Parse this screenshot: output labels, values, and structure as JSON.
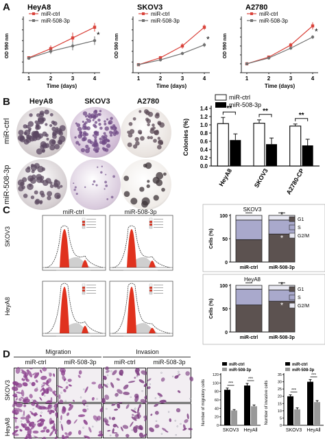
{
  "panels": {
    "A": "A",
    "B": "B",
    "C": "C",
    "D": "D"
  },
  "colors": {
    "ctrl": "#d9423a",
    "mir": "#707070",
    "bar_ctrl": "#ffffff",
    "bar_mir": "#000000",
    "g1": "#5c5250",
    "s": "#a9a9cc",
    "g2m": "#e8e8f2",
    "red_peak": "#e0321e"
  },
  "panelA": {
    "charts": [
      {
        "title": "HeyA8",
        "ylabel": "OD 590 nm",
        "xlabel": "Time (days)",
        "xticks": [
          "1",
          "2",
          "3",
          "4"
        ],
        "legend": [
          "miR-ctrl",
          "miR-508-3p"
        ],
        "star": "*"
      },
      {
        "title": "SKOV3",
        "ylabel": "OD 590 nm",
        "xlabel": "Time (days)",
        "xticks": [
          "1",
          "2",
          "3",
          "4"
        ],
        "legend": [
          "miR-ctrl",
          "miR-508-3p"
        ],
        "star": "*"
      },
      {
        "title": "A2780",
        "ylabel": "OD 590 nm",
        "xlabel": "Time (days)",
        "xticks": [
          "1",
          "2",
          "3",
          "4"
        ],
        "legend": [
          "miR-ctrl",
          "miR-508-3p"
        ],
        "star": "*"
      }
    ]
  },
  "panelB": {
    "col_labels": [
      "HeyA8",
      "SKOV3",
      "A2780"
    ],
    "row_labels": [
      "miR-ctrl",
      "miR-508-3p"
    ],
    "bar_legend": [
      "miR-ctrl",
      "miR-508-3p"
    ],
    "ylabel": "Colonies (%)",
    "yticks": [
      "0.0",
      "0.2",
      "0.4",
      "0.6",
      "0.8",
      "1.0",
      "1.2",
      "1.4"
    ],
    "categories": [
      "HeyA8",
      "SKOV3",
      "A2780-CP"
    ],
    "sig": [
      "**",
      "**",
      "**"
    ]
  },
  "panelC": {
    "col_labels": [
      "miR-ctrl",
      "miR-508-3p"
    ],
    "row_labels": [
      "SKOV3",
      "HeyA8"
    ],
    "charts": [
      {
        "title": "SKOV3",
        "ylabel": "Cells (%)",
        "yticks": [
          "0",
          "50",
          "100"
        ],
        "categories": [
          "miR-ctrl",
          "miR-508-3p"
        ],
        "legend": [
          "G1",
          "S",
          "G2/M"
        ],
        "stars": [
          "*",
          "*"
        ]
      },
      {
        "title": "HeyA8",
        "ylabel": "Cells (%)",
        "yticks": [
          "0",
          "50",
          "100"
        ],
        "categories": [
          "miR-ctrl",
          "miR-508-3p"
        ],
        "legend": [
          "G1",
          "S",
          "G2/M"
        ],
        "stars": [
          "*",
          "*"
        ]
      }
    ]
  },
  "panelD": {
    "group_labels": [
      "Migration",
      "Invasion"
    ],
    "col_labels": [
      "miR-ctrl",
      "miR-508-3p",
      "miR-ctrl",
      "miR-508-3p"
    ],
    "row_labels": [
      "SKOV3",
      "HeyA8"
    ],
    "charts": [
      {
        "ylabel": "Number of migratory cells",
        "yticks": [
          "0",
          "20",
          "40",
          "60",
          "80",
          "100",
          "120"
        ],
        "categories": [
          "SKOV3",
          "HeyAll"
        ],
        "legend": [
          "miR-ctrl",
          "miR-508-3p"
        ],
        "sig": [
          "***",
          "***"
        ]
      },
      {
        "ylabel": "Number of invasive cells",
        "yticks": [
          "0",
          "5",
          "10",
          "15",
          "20",
          "25",
          "30",
          "35"
        ],
        "categories": [
          "SKOV3",
          "HeyAll"
        ],
        "legend": [
          "miR-ctrl",
          "miR-508-3p"
        ],
        "sig": [
          "***",
          "***"
        ]
      }
    ]
  },
  "chart_data": [
    {
      "type": "line",
      "title": "HeyA8",
      "xlabel": "Time (days)",
      "ylabel": "OD 590 nm",
      "x": [
        1,
        2,
        3,
        4
      ],
      "series": [
        {
          "name": "miR-ctrl",
          "values": [
            0.28,
            0.45,
            0.65,
            0.85
          ]
        },
        {
          "name": "miR-508-3p",
          "values": [
            0.27,
            0.4,
            0.5,
            0.6
          ]
        }
      ]
    },
    {
      "type": "line",
      "title": "SKOV3",
      "xlabel": "Time (days)",
      "ylabel": "OD 590 nm",
      "x": [
        1,
        2,
        3,
        4
      ],
      "series": [
        {
          "name": "miR-ctrl",
          "values": [
            0.15,
            0.28,
            0.5,
            0.85
          ]
        },
        {
          "name": "miR-508-3p",
          "values": [
            0.15,
            0.24,
            0.36,
            0.52
          ]
        }
      ]
    },
    {
      "type": "line",
      "title": "A2780",
      "xlabel": "Time (days)",
      "ylabel": "OD 590 nm",
      "x": [
        1,
        2,
        3,
        4
      ],
      "series": [
        {
          "name": "miR-ctrl",
          "values": [
            0.2,
            0.35,
            0.62,
            1.05
          ]
        },
        {
          "name": "miR-508-3p",
          "values": [
            0.2,
            0.33,
            0.55,
            0.8
          ]
        }
      ]
    },
    {
      "type": "bar",
      "ylabel": "Colonies (%)",
      "ylim": [
        0,
        1.4
      ],
      "categories": [
        "HeyA8",
        "SKOV3",
        "A2780-CP"
      ],
      "series": [
        {
          "name": "miR-ctrl",
          "values": [
            1.03,
            1.04,
            0.97
          ],
          "errors": [
            0.15,
            0.08,
            0.05
          ]
        },
        {
          "name": "miR-508-3p",
          "values": [
            0.63,
            0.53,
            0.5
          ],
          "errors": [
            0.15,
            0.15,
            0.15
          ]
        }
      ]
    },
    {
      "type": "bar",
      "title": "SKOV3",
      "ylabel": "Cells (%)",
      "ylim": [
        0,
        100
      ],
      "categories": [
        "miR-ctrl",
        "miR-508-3p"
      ],
      "series": [
        {
          "name": "G1",
          "values": [
            48,
            60
          ]
        },
        {
          "name": "S",
          "values": [
            42,
            30
          ]
        },
        {
          "name": "G2/M",
          "values": [
            10,
            10
          ]
        }
      ]
    },
    {
      "type": "bar",
      "title": "HeyA8",
      "ylabel": "Cells (%)",
      "ylim": [
        0,
        100
      ],
      "categories": [
        "miR-ctrl",
        "miR-508-3p"
      ],
      "series": [
        {
          "name": "G1",
          "values": [
            58,
            66
          ]
        },
        {
          "name": "S",
          "values": [
            34,
            24
          ]
        },
        {
          "name": "G2/M",
          "values": [
            8,
            10
          ]
        }
      ]
    },
    {
      "type": "bar",
      "ylabel": "Number of migratory cells",
      "ylim": [
        0,
        120
      ],
      "categories": [
        "SKOV3",
        "HeyAll"
      ],
      "series": [
        {
          "name": "miR-ctrl",
          "values": [
            84,
            94
          ],
          "errors": [
            4,
            5
          ]
        },
        {
          "name": "miR-508-3p",
          "values": [
            35,
            45
          ],
          "errors": [
            2,
            3
          ]
        }
      ]
    },
    {
      "type": "bar",
      "ylabel": "Number of invasive cells",
      "ylim": [
        0,
        35
      ],
      "categories": [
        "SKOV3",
        "HeyAll"
      ],
      "series": [
        {
          "name": "miR-ctrl",
          "values": [
            20,
            30
          ],
          "errors": [
            1,
            1.5
          ]
        },
        {
          "name": "miR-508-3p",
          "values": [
            11,
            16
          ],
          "errors": [
            1,
            1
          ]
        }
      ]
    }
  ]
}
